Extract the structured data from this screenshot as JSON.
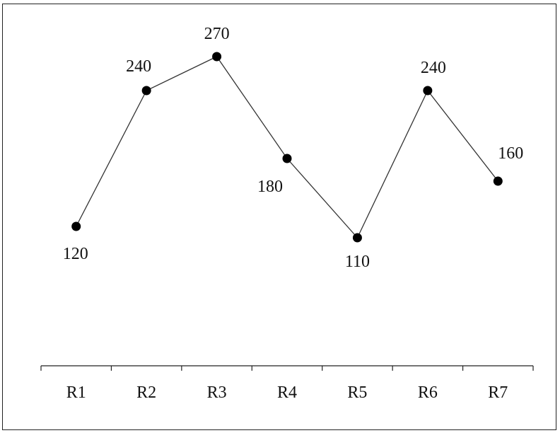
{
  "chart_data": {
    "type": "line",
    "categories": [
      "R1",
      "R2",
      "R3",
      "R4",
      "R5",
      "R6",
      "R7"
    ],
    "series": [
      {
        "values": [
          120,
          240,
          270,
          180,
          110,
          240,
          160
        ]
      }
    ],
    "data_labels": [
      "120",
      "240",
      "270",
      "180",
      "110",
      "240",
      "160"
    ],
    "title": "",
    "xlabel": "",
    "ylabel": "",
    "ylim": [
      0,
      270
    ],
    "grid": false,
    "legend": "none",
    "colors": {
      "line": "#333333",
      "marker": "#000000",
      "text": "#111111",
      "frame": "#222222"
    }
  }
}
